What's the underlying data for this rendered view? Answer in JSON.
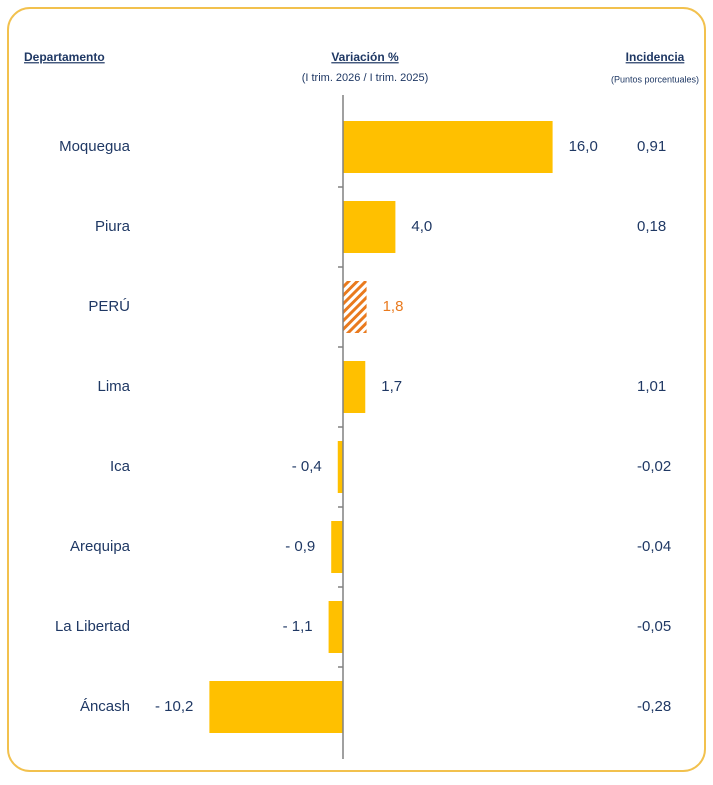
{
  "chart_data": {
    "type": "hbar",
    "headers": {
      "category": "Departamento",
      "value": "Variación %",
      "value_sub": "(I trim. 2026 / I trim. 2025)",
      "incidence": "Incidencia",
      "incidence_sub": "(Puntos porcentuales)"
    },
    "categories": [
      "Moquegua",
      "Piura",
      "PERÚ",
      "Lima",
      "Ica",
      "Arequipa",
      "La Libertad",
      "Áncash"
    ],
    "values": [
      16.0,
      4.0,
      1.8,
      1.7,
      -0.4,
      -0.9,
      -1.1,
      -10.2
    ],
    "value_labels": [
      "16,0",
      "4,0",
      "1,8",
      "1,7",
      "- 0,4",
      "- 0,9",
      "- 1,1",
      "- 10,2"
    ],
    "incidence": [
      "0,91",
      "0,18",
      null,
      "1,01",
      "-0,02",
      "-0,04",
      "-0,05",
      "-0,28"
    ],
    "colors": [
      "#FFC000",
      "#FFC000",
      "#E97A1E",
      "#FFC000",
      "#FFC000",
      "#FFC000",
      "#FFC000",
      "#FFC000"
    ],
    "hatched": [
      false,
      false,
      true,
      false,
      false,
      false,
      false,
      false
    ],
    "xlim": [
      -20,
      20
    ]
  }
}
